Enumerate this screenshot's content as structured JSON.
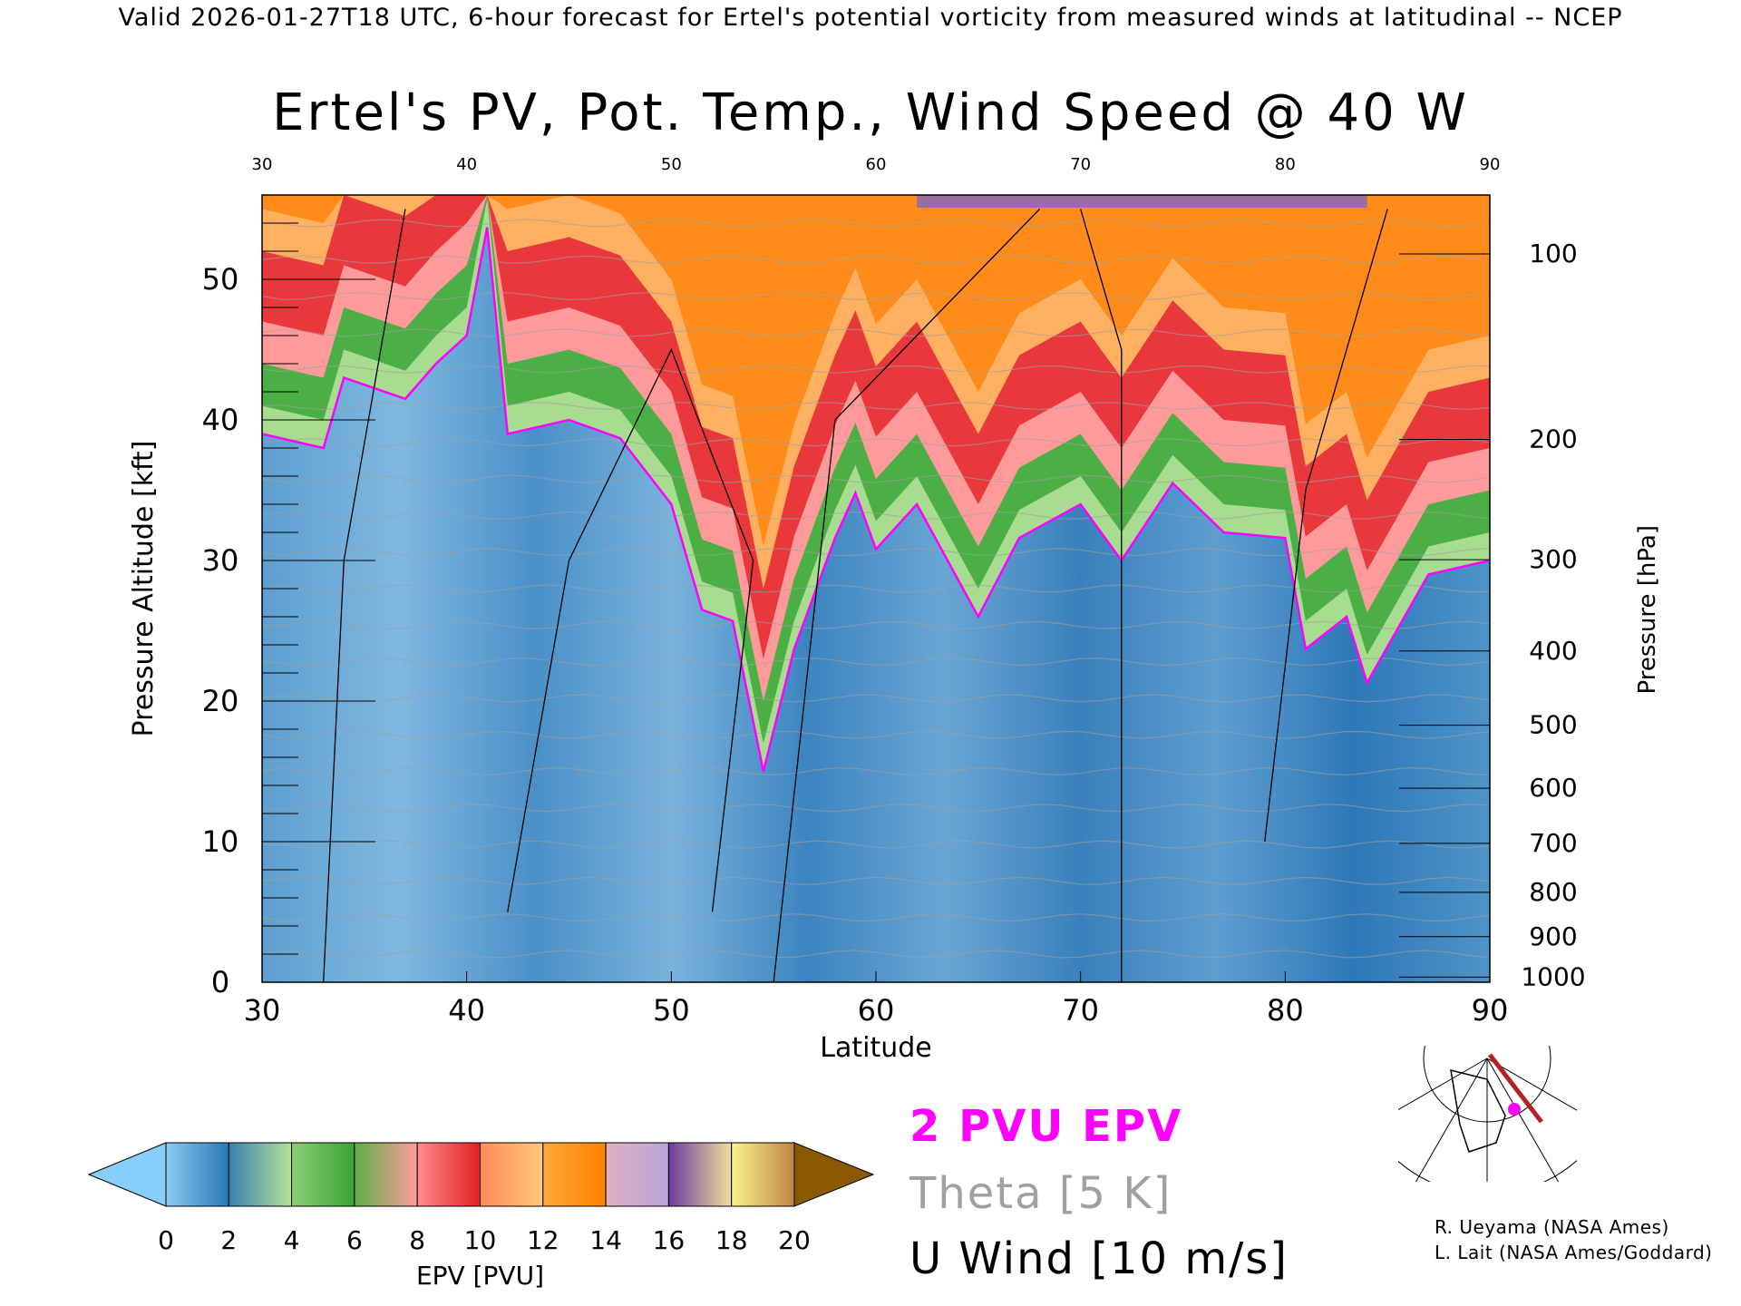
{
  "header": "Valid 2026-01-27T18 UTC, 6-hour forecast for Ertel's potential vorticity from measured winds at latitudinal -- NCEP",
  "chart_data": {
    "type": "heatmap",
    "title": "Ertel's PV, Pot. Temp., Wind Speed @ 40 W",
    "xlabel": "Latitude",
    "ylabel": "Pressure Altitude [kft]",
    "ylabel_right": "Pressure [hPa]",
    "xlim": [
      30,
      90
    ],
    "ylim": [
      0,
      56
    ],
    "x_ticks": [
      30,
      40,
      50,
      60,
      70,
      80,
      90
    ],
    "top_ticks": [
      30,
      40,
      50,
      60,
      70,
      80,
      90
    ],
    "y_ticks": [
      0,
      10,
      20,
      30,
      40,
      50
    ],
    "pressure_ticks": [
      100,
      200,
      300,
      400,
      500,
      600,
      700,
      800,
      900,
      1000
    ],
    "colorbar": {
      "label": "EPV [PVU]",
      "levels": [
        0,
        2,
        4,
        6,
        8,
        10,
        12,
        14,
        16,
        18,
        20
      ],
      "colors": [
        [
          "#8ccaf0",
          "#2a78b8"
        ],
        [
          "#3a80b0",
          "#b4e29a"
        ],
        [
          "#8ccf74",
          "#3aa334"
        ],
        [
          "#5fae4a",
          "#ff9c9c"
        ],
        [
          "#ff8c8c",
          "#e02024"
        ],
        [
          "#ff8a5a",
          "#ffc878"
        ],
        [
          "#ffa838",
          "#ff8000"
        ],
        [
          "#e0b0c0",
          "#b8a4d8"
        ],
        [
          "#6c3c9c",
          "#f0e0a0"
        ],
        [
          "#f8f48c",
          "#c08448"
        ]
      ],
      "under_color": "#87cefa",
      "over_color": "#8b5a00"
    },
    "tropopause_2pvu": {
      "name": "2 PVU EPV",
      "lat": [
        30,
        33,
        34,
        37,
        38.5,
        40,
        41,
        42,
        45,
        47.5,
        50,
        51.5,
        53,
        54.5,
        56,
        58,
        59,
        60,
        62,
        65,
        67,
        70,
        72,
        74.5,
        77,
        80,
        81,
        83,
        84,
        87,
        90
      ],
      "alt_kft": [
        39,
        38,
        43,
        41.5,
        44,
        46,
        53.7,
        39,
        40,
        38.7,
        34,
        26.5,
        25.7,
        15,
        23.7,
        31.6,
        34.8,
        30.8,
        34,
        26,
        31.6,
        34,
        30,
        35.5,
        32,
        31.6,
        23.7,
        26,
        21.3,
        29,
        30
      ]
    },
    "legend": [
      {
        "label": "2 PVU EPV",
        "color": "#ff00ff"
      },
      {
        "label": "Theta [5 K]",
        "color": "#a0a0a0"
      },
      {
        "label": "U Wind [10 m/s]",
        "color": "#000000"
      }
    ]
  },
  "credits": [
    "R. Ueyama (NASA Ames)",
    "L. Lait (NASA Ames/Goddard)"
  ],
  "colors": {
    "tropopause": "#ff00ff",
    "theta": "#a0a0a0",
    "wind": "#000000",
    "section_line": "#b22222",
    "location_dot": "#ff00ff"
  }
}
